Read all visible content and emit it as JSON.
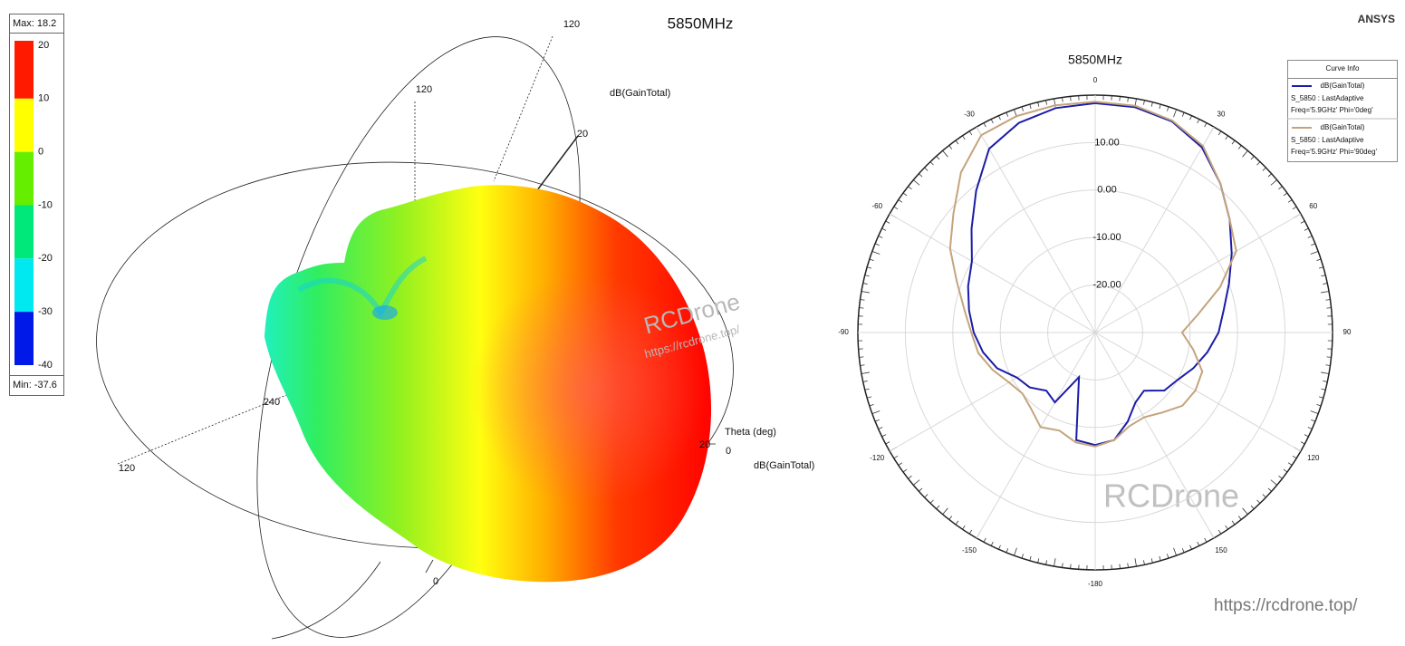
{
  "brand": "ANSYS",
  "watermarks": [
    "RCDrone",
    "https://rcdrone.top/",
    "RCDrone",
    "https://rcdrone.top/"
  ],
  "chart_data": [
    {
      "type": "surface3d",
      "title": "5850MHz",
      "axis_labels": [
        "120",
        "120",
        "20",
        "dB(GainTotal)",
        "Theta (deg)",
        "20",
        "0",
        "dB(GainTotal)",
        "240",
        "120",
        "0"
      ],
      "colorbar": {
        "max_label": "Max: 18.2",
        "min_label": "Min: -37.6",
        "lim": [
          -40,
          20
        ],
        "ticks": [
          20,
          10,
          0,
          -10,
          -20,
          -30,
          -40
        ],
        "colors": [
          "#ff1a00",
          "#ffff00",
          "#66ee00",
          "#00e87a",
          "#00e8f0",
          "#0018e8"
        ]
      }
    },
    {
      "type": "polar",
      "title": "5850MHz",
      "rlim": [
        -30,
        20
      ],
      "rticks": [
        {
          "value": -20,
          "label": "-20.00"
        },
        {
          "value": -10,
          "label": "-10.00"
        },
        {
          "value": 0,
          "label": "0.00"
        },
        {
          "value": 10,
          "label": "10.00"
        }
      ],
      "xticks": [
        0,
        30,
        60,
        90,
        120,
        150,
        -180,
        -150,
        -120,
        -90,
        -60,
        -30
      ],
      "legend_title": "Curve Info",
      "x": [
        -180,
        -170,
        -160,
        -150,
        -140,
        -130,
        -120,
        -110,
        -100,
        -90,
        -80,
        -70,
        -60,
        -50,
        -40,
        -30,
        -20,
        -10,
        0,
        10,
        20,
        30,
        40,
        50,
        60,
        70,
        80,
        90,
        100,
        110,
        120,
        130,
        140,
        150,
        160,
        170,
        180
      ],
      "series": [
        {
          "name": "dB(GainTotal)",
          "setup": "S_5850 : LastAdaptive",
          "condition": "Freq='5.9GHz' Phi='0deg'",
          "color": "#1c1ca8",
          "values": [
            -6.3,
            -7,
            -20,
            -13,
            -14,
            -12,
            -11,
            -8,
            -6,
            -4.4,
            -3,
            -1.5,
            0,
            4,
            9,
            14.7,
            17,
            18,
            18.3,
            18.2,
            17.3,
            15,
            11,
            7,
            3.2,
            0,
            -2.5,
            -4,
            -6,
            -8,
            -10,
            -11,
            -14,
            -13,
            -10,
            -7,
            -6.3
          ]
        },
        {
          "name": "dB(GainTotal)",
          "setup": "S_5850 : LastAdaptive",
          "condition": "Freq='5.9GHz' Phi='90deg'",
          "color": "#c4a47c",
          "values": [
            -6,
            -6.5,
            -8,
            -7,
            -9,
            -10,
            -9,
            -7,
            -5,
            -3.9,
            -2,
            1,
            5.3,
            9,
            14,
            18,
            18.5,
            18.6,
            18.6,
            18.5,
            17.5,
            15.4,
            11,
            7,
            4.3,
            -2,
            -8,
            -11.7,
            -9,
            -6,
            -5.6,
            -6,
            -8,
            -9.4,
            -9,
            -7,
            -6
          ]
        }
      ]
    }
  ]
}
